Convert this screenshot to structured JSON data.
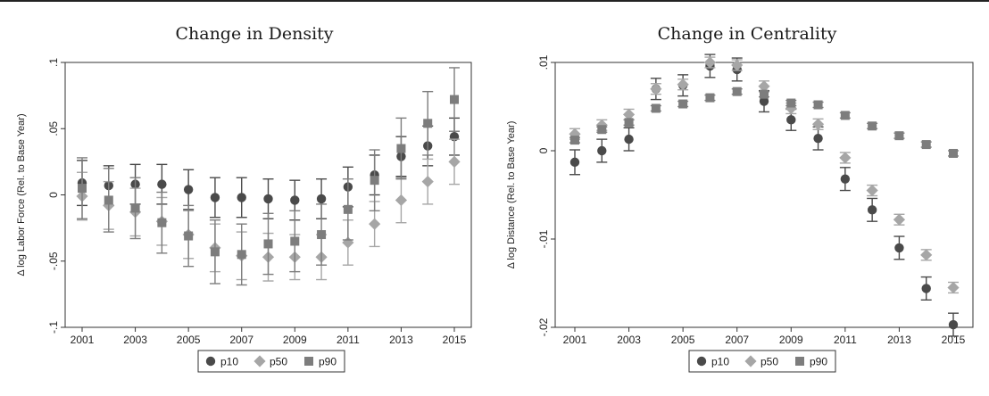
{
  "chart_data": [
    {
      "type": "scatter",
      "title": "Change in Density",
      "xlabel": "",
      "ylabel": "Δ log Labor Force (Rel. to Base Year)",
      "x": [
        2001,
        2002,
        2003,
        2004,
        2005,
        2006,
        2007,
        2008,
        2009,
        2010,
        2011,
        2012,
        2013,
        2014,
        2015
      ],
      "xlim": [
        2001,
        2015
      ],
      "xticks": [
        "2001",
        "2003",
        "2005",
        "2007",
        "2009",
        "2011",
        "2013",
        "2015"
      ],
      "ylim": [
        -0.1,
        0.1
      ],
      "yticks": [
        -0.1,
        -0.05,
        0,
        0.05,
        0.1
      ],
      "ytick_labels": [
        "-.1",
        "-.05",
        "0",
        ".05",
        ".1"
      ],
      "grid": false,
      "error_bars": true,
      "series": [
        {
          "name": "p10",
          "marker": "circle",
          "color": "#4a4a4a",
          "values": [
            0.009,
            0.007,
            0.008,
            0.008,
            0.004,
            -0.002,
            -0.002,
            -0.003,
            -0.004,
            -0.003,
            0.006,
            0.015,
            0.029,
            0.037,
            0.044
          ],
          "ci_low": [
            -0.008,
            -0.008,
            -0.007,
            -0.007,
            -0.011,
            -0.017,
            -0.017,
            -0.018,
            -0.019,
            -0.018,
            -0.009,
            0.0,
            0.014,
            0.022,
            0.03
          ],
          "ci_high": [
            0.026,
            0.022,
            0.023,
            0.023,
            0.019,
            0.013,
            0.013,
            0.012,
            0.011,
            0.012,
            0.021,
            0.03,
            0.044,
            0.052,
            0.058
          ]
        },
        {
          "name": "p50",
          "marker": "diamond",
          "color": "#a6a6a6",
          "values": [
            -0.001,
            -0.008,
            -0.013,
            -0.02,
            -0.03,
            -0.04,
            -0.046,
            -0.047,
            -0.047,
            -0.047,
            -0.036,
            -0.022,
            -0.004,
            0.01,
            0.025
          ],
          "ci_low": [
            -0.019,
            -0.026,
            -0.031,
            -0.038,
            -0.048,
            -0.058,
            -0.064,
            -0.065,
            -0.064,
            -0.064,
            -0.053,
            -0.039,
            -0.021,
            -0.007,
            0.008
          ],
          "ci_high": [
            0.017,
            0.01,
            0.005,
            -0.002,
            -0.012,
            -0.022,
            -0.028,
            -0.029,
            -0.03,
            -0.03,
            -0.019,
            -0.005,
            0.013,
            0.027,
            0.042
          ]
        },
        {
          "name": "p90",
          "marker": "square",
          "color": "#7d7d7d",
          "values": [
            0.005,
            -0.004,
            -0.01,
            -0.021,
            -0.031,
            -0.043,
            -0.045,
            -0.037,
            -0.035,
            -0.03,
            -0.011,
            0.011,
            0.035,
            0.054,
            0.072
          ],
          "ci_low": [
            -0.018,
            -0.028,
            -0.033,
            -0.044,
            -0.054,
            -0.067,
            -0.068,
            -0.06,
            -0.058,
            -0.053,
            -0.034,
            -0.012,
            0.012,
            0.03,
            0.048
          ],
          "ci_high": [
            0.028,
            0.02,
            0.013,
            0.002,
            -0.008,
            -0.019,
            -0.022,
            -0.014,
            -0.012,
            -0.007,
            0.012,
            0.034,
            0.058,
            0.078,
            0.096
          ]
        }
      ],
      "legend": {
        "position": "bottom",
        "labels": [
          "p10",
          "p50",
          "p90"
        ]
      }
    },
    {
      "type": "scatter",
      "title": "Change in Centrality",
      "xlabel": "",
      "ylabel": "Δ log Distance (Rel. to Base Year)",
      "x": [
        2001,
        2002,
        2003,
        2004,
        2005,
        2006,
        2007,
        2008,
        2009,
        2010,
        2011,
        2012,
        2013,
        2014,
        2015
      ],
      "xlim": [
        2001,
        2015
      ],
      "xticks": [
        "2001",
        "2003",
        "2005",
        "2007",
        "2009",
        "2011",
        "2013",
        "2015"
      ],
      "ylim": [
        -0.02,
        0.01
      ],
      "yticks": [
        -0.02,
        -0.01,
        0,
        0.01
      ],
      "ytick_labels": [
        "-.02",
        "-.01",
        "0",
        ".01"
      ],
      "grid": false,
      "error_bars": true,
      "series": [
        {
          "name": "p10",
          "marker": "circle",
          "color": "#4a4a4a",
          "values": [
            -0.0013,
            0.0,
            0.0013,
            0.007,
            0.0074,
            0.0096,
            0.0092,
            0.0056,
            0.0035,
            0.0014,
            -0.0032,
            -0.0067,
            -0.011,
            -0.0156,
            -0.0197
          ],
          "ci_low": [
            -0.0027,
            -0.0013,
            0.0,
            0.0058,
            0.0062,
            0.0083,
            0.0079,
            0.0044,
            0.0023,
            0.0001,
            -0.0045,
            -0.008,
            -0.0123,
            -0.0169,
            -0.021
          ],
          "ci_high": [
            0.0001,
            0.0013,
            0.0026,
            0.0082,
            0.0086,
            0.0109,
            0.0105,
            0.0068,
            0.0047,
            0.0027,
            -0.0019,
            -0.0054,
            -0.0097,
            -0.0143,
            -0.0184
          ]
        },
        {
          "name": "p50",
          "marker": "diamond",
          "color": "#a6a6a6",
          "values": [
            0.0019,
            0.0029,
            0.0041,
            0.007,
            0.0075,
            0.01,
            0.0097,
            0.0073,
            0.0048,
            0.003,
            -0.0008,
            -0.0045,
            -0.0078,
            -0.0118,
            -0.0155
          ],
          "ci_low": [
            0.0013,
            0.0023,
            0.0035,
            0.0064,
            0.0069,
            0.0094,
            0.0091,
            0.0067,
            0.0042,
            0.0024,
            -0.0014,
            -0.0051,
            -0.0084,
            -0.0124,
            -0.0161
          ],
          "ci_high": [
            0.0025,
            0.0035,
            0.0047,
            0.0076,
            0.0081,
            0.0106,
            0.0103,
            0.0079,
            0.0054,
            0.0036,
            -0.0002,
            -0.0039,
            -0.0072,
            -0.0112,
            -0.0149
          ]
        },
        {
          "name": "p90",
          "marker": "square",
          "color": "#7d7d7d",
          "values": [
            0.0012,
            0.0024,
            0.0032,
            0.0048,
            0.0053,
            0.006,
            0.0067,
            0.0064,
            0.0054,
            0.0052,
            0.004,
            0.0028,
            0.0017,
            0.0007,
            -0.0003
          ],
          "ci_low": [
            0.0009,
            0.0021,
            0.0029,
            0.0045,
            0.005,
            0.0057,
            0.0064,
            0.0061,
            0.0051,
            0.0049,
            0.0037,
            0.0025,
            0.0014,
            0.0004,
            -0.0006
          ],
          "ci_high": [
            0.0015,
            0.0027,
            0.0035,
            0.0051,
            0.0056,
            0.0063,
            0.007,
            0.0067,
            0.0057,
            0.0055,
            0.0043,
            0.0031,
            0.002,
            0.001,
            0.0
          ]
        }
      ],
      "legend": {
        "position": "bottom",
        "labels": [
          "p10",
          "p50",
          "p90"
        ]
      }
    }
  ]
}
